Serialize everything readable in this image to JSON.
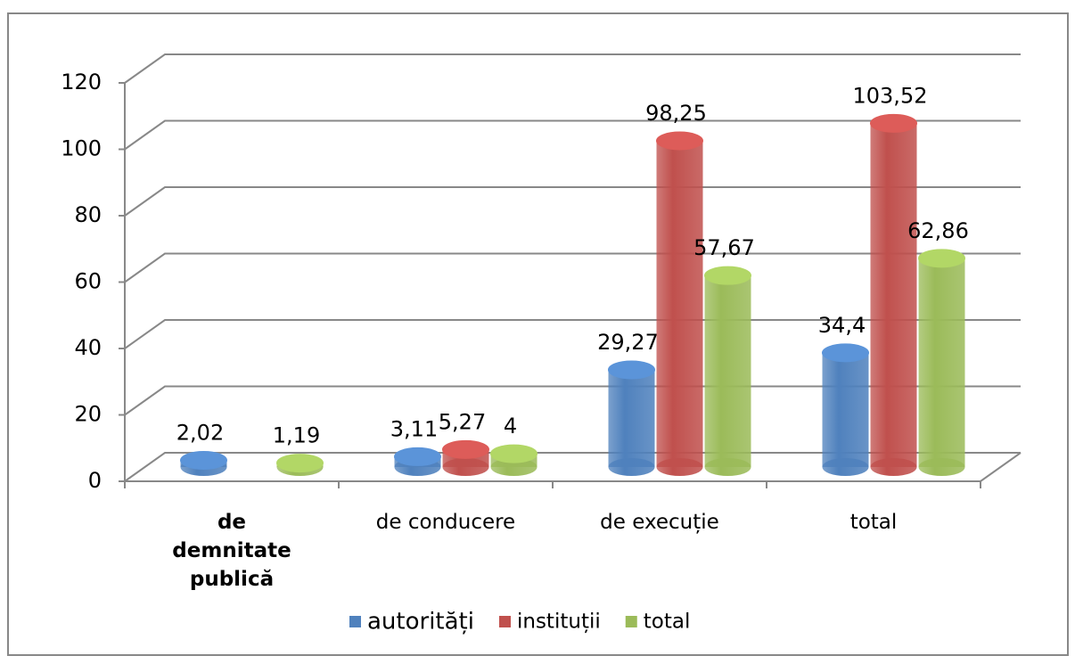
{
  "chart_data": {
    "type": "bar3d",
    "categories": [
      "de demnitate publică",
      "de conducere",
      "de execuție",
      "total"
    ],
    "series": [
      {
        "name": "autorități",
        "color": "#4f81bd",
        "values": [
          2.02,
          3.11,
          29.27,
          34.4
        ],
        "value_labels": [
          "2,02",
          "3,11",
          "29,27",
          "34,4"
        ]
      },
      {
        "name": "instituții",
        "color": "#c0504d",
        "values": [
          null,
          5.27,
          98.25,
          103.52
        ],
        "value_labels": [
          null,
          "5,27",
          "98,25",
          "103,52"
        ]
      },
      {
        "name": "total",
        "color": "#9bbb59",
        "values": [
          1.19,
          4,
          57.67,
          62.86
        ],
        "value_labels": [
          "1,19",
          "4",
          "57,67",
          "62,86"
        ]
      }
    ],
    "ylim": [
      0,
      120
    ],
    "yticks": [
      0,
      20,
      40,
      60,
      80,
      100,
      120
    ],
    "grid": true
  }
}
